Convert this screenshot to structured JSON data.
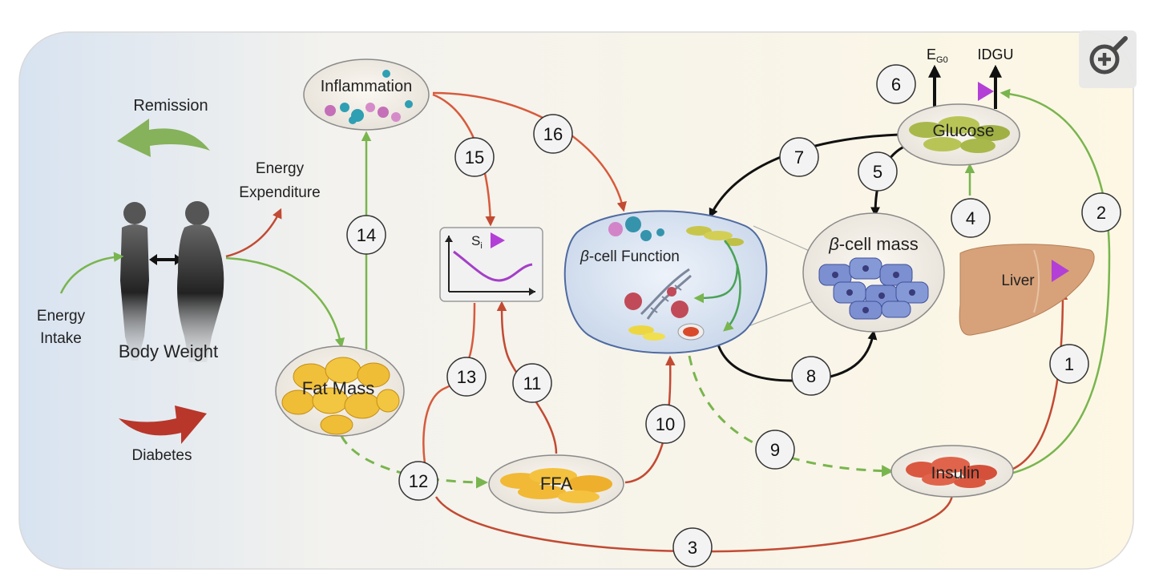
{
  "labels": {
    "remission": "Remission",
    "energy_expenditure": [
      "Energy",
      "Expenditure"
    ],
    "energy_intake": [
      "Energy",
      "Intake"
    ],
    "body_weight": "Body Weight",
    "diabetes": "Diabetes",
    "inflammation": "Inflammation",
    "fat_mass": "Fat Mass",
    "ffa": "FFA",
    "si": "S",
    "si_sub": "i",
    "beta_function": "-cell Function",
    "beta_mass": "-cell mass",
    "beta_symbol": "β",
    "glucose": "Glucose",
    "liver": "Liver",
    "insulin": "Insulin",
    "eg0": "E",
    "eg0_sub": "G0",
    "idgu": "IDGU"
  },
  "numbers": [
    "1",
    "2",
    "3",
    "4",
    "5",
    "6",
    "7",
    "8",
    "9",
    "10",
    "11",
    "12",
    "13",
    "14",
    "15",
    "16"
  ],
  "colors": {
    "green": "#79b54e",
    "red": "#d75a3c",
    "dark_red": "#c24a33",
    "black": "#111111",
    "purple": "#b33fd6",
    "panel_left": "#dbe5f2",
    "panel_right": "#fcf6e6"
  },
  "icons": {
    "zoom": "zoom-in-icon"
  }
}
